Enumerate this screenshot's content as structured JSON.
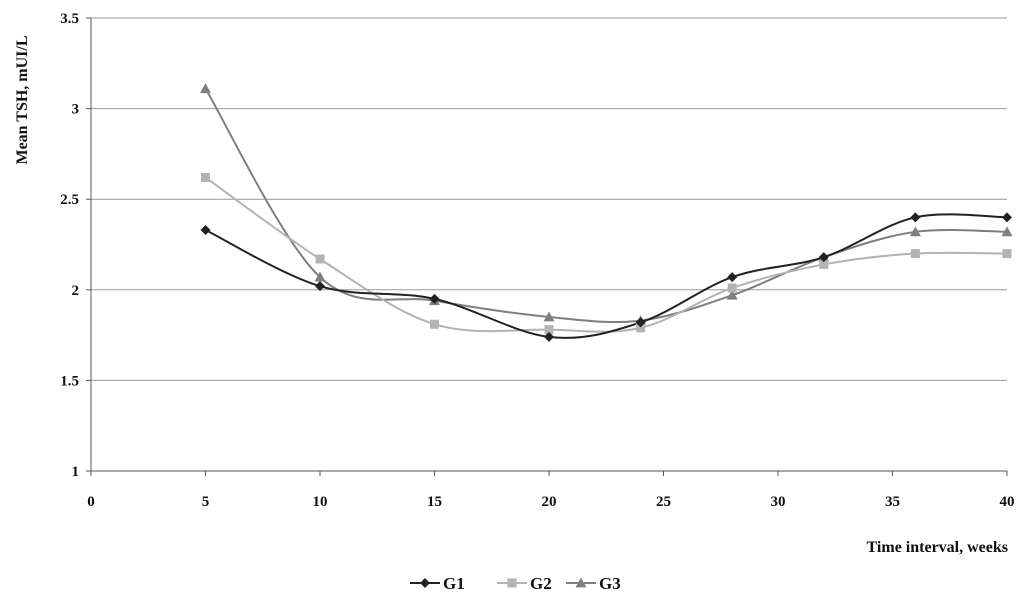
{
  "chart_data": {
    "type": "line",
    "title": "",
    "xlabel": "Time interval, weeks",
    "ylabel": "Mean TSH, mUI/L",
    "xlim": [
      0,
      40
    ],
    "ylim": [
      1,
      3.5
    ],
    "x_ticks": [
      "0",
      "5",
      "10",
      "15",
      "20",
      "25",
      "30",
      "35",
      "40"
    ],
    "y_ticks": [
      "1",
      "1.5",
      "2",
      "2.5",
      "3",
      "3.5"
    ],
    "grid": true,
    "legend_position": "bottom",
    "series": [
      {
        "name": "G1",
        "color": "#222222",
        "marker": "diamond",
        "x": [
          5,
          10,
          15,
          20,
          24,
          28,
          32,
          36,
          40
        ],
        "y": [
          2.33,
          2.02,
          1.95,
          1.74,
          1.82,
          2.07,
          2.18,
          2.4,
          2.4
        ]
      },
      {
        "name": "G2",
        "color": "#b3b3b3",
        "marker": "square",
        "x": [
          5,
          10,
          15,
          20,
          24,
          28,
          32,
          36,
          40
        ],
        "y": [
          2.62,
          2.17,
          1.81,
          1.78,
          1.79,
          2.01,
          2.14,
          2.2,
          2.2
        ]
      },
      {
        "name": "G3",
        "color": "#7f7f7f",
        "marker": "triangle",
        "x": [
          5,
          10,
          15,
          20,
          24,
          28,
          32,
          36,
          40
        ],
        "y": [
          3.11,
          2.07,
          1.94,
          1.85,
          1.83,
          1.97,
          2.18,
          2.32,
          2.32
        ]
      }
    ]
  }
}
